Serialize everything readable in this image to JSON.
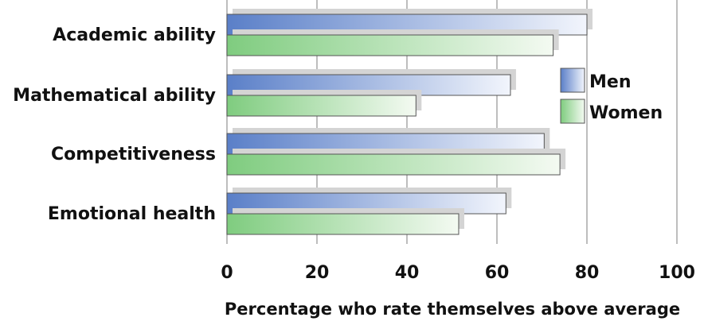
{
  "chart_data": {
    "type": "bar",
    "orientation": "horizontal",
    "categories": [
      "Academic ability",
      "Mathematical ability",
      "Competitiveness",
      "Emotional health"
    ],
    "series": [
      {
        "name": "Men",
        "values": [
          80,
          63,
          70.5,
          62
        ]
      },
      {
        "name": "Women",
        "values": [
          72.5,
          42,
          74,
          51.5
        ]
      }
    ],
    "xlabel": "Percentage who rate themselves above average",
    "ylabel": "",
    "xlim": [
      0,
      100
    ],
    "xticks": [
      0,
      20,
      40,
      60,
      80,
      100
    ],
    "grid": true,
    "legend_position": "right",
    "colors": {
      "men_start": "#5a7fc8",
      "men_end": "#f2f5fc",
      "women_start": "#7fcc7f",
      "women_end": "#f4faf2",
      "grid": "#9a9a9a",
      "shadow": "#d4d4d4",
      "bar_edge": "#555555"
    }
  }
}
